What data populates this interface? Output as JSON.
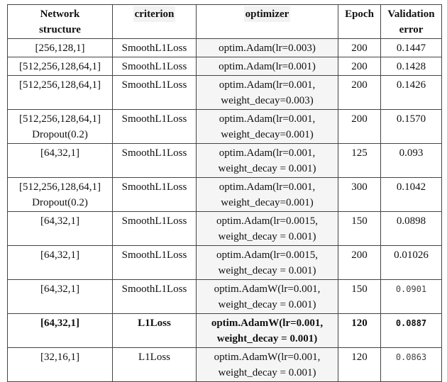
{
  "headers": [
    [
      "Network",
      "structure"
    ],
    [
      "criterion"
    ],
    [
      "optimizer"
    ],
    [
      "Epoch"
    ],
    [
      "Validation",
      "error"
    ]
  ],
  "rows": [
    {
      "network": [
        "[256,128,1]"
      ],
      "criterion": "SmoothL1Loss",
      "optimizer": [
        "optim.Adam(lr=0.003)"
      ],
      "epoch": "200",
      "error": "0.1447",
      "mono": false,
      "bold": false
    },
    {
      "network": [
        "[512,256,128,64,1]"
      ],
      "criterion": "SmoothL1Loss",
      "optimizer": [
        "optim.Adam(lr=0.001)"
      ],
      "epoch": "200",
      "error": "0.1428",
      "mono": false,
      "bold": false
    },
    {
      "network": [
        "[512,256,128,64,1]"
      ],
      "criterion": "SmoothL1Loss",
      "optimizer": [
        "optim.Adam(lr=0.001,",
        "weight_decay=0.003)"
      ],
      "epoch": "200",
      "error": "0.1426",
      "mono": false,
      "bold": false
    },
    {
      "network": [
        "[512,256,128,64,1]",
        "Dropout(0.2)"
      ],
      "criterion": "SmoothL1Loss",
      "optimizer": [
        "optim.Adam(lr=0.001,",
        "weight_decay=0.001)"
      ],
      "epoch": "200",
      "error": "0.1570",
      "mono": false,
      "bold": false
    },
    {
      "network": [
        "[64,32,1]"
      ],
      "criterion": "SmoothL1Loss",
      "optimizer": [
        "optim.Adam(lr=0.001,",
        "weight_decay = 0.001)"
      ],
      "epoch": "125",
      "error": "0.093",
      "mono": false,
      "bold": false
    },
    {
      "network": [
        "[512,256,128,64,1]",
        "Dropout(0.2)"
      ],
      "criterion": "SmoothL1Loss",
      "optimizer": [
        "optim.Adam(lr=0.001,",
        "weight_decay=0.001)"
      ],
      "epoch": "300",
      "error": "0.1042",
      "mono": false,
      "bold": false
    },
    {
      "network": [
        "[64,32,1]"
      ],
      "criterion": "SmoothL1Loss",
      "optimizer": [
        "optim.Adam(lr=0.0015,",
        "weight_decay = 0.001)"
      ],
      "epoch": "150",
      "error": "0.0898",
      "mono": false,
      "bold": false
    },
    {
      "network": [
        "[64,32,1]"
      ],
      "criterion": "SmoothL1Loss",
      "optimizer": [
        "optim.Adam(lr=0.0015,",
        "weight_decay = 0.001)"
      ],
      "epoch": "200",
      "error": "0.01026",
      "mono": false,
      "bold": false
    },
    {
      "network": [
        "[64,32,1]"
      ],
      "criterion": "SmoothL1Loss",
      "optimizer": [
        "optim.AdamW(lr=0.001,",
        "weight_decay = 0.001)"
      ],
      "epoch": "150",
      "error": "0.0901",
      "mono": true,
      "bold": false
    },
    {
      "network": [
        "[64,32,1]"
      ],
      "criterion": "L1Loss",
      "optimizer": [
        "optim.AdamW(lr=0.001,",
        "weight_decay = 0.001)"
      ],
      "epoch": "120",
      "error": "0.0887",
      "mono": true,
      "bold": true
    },
    {
      "network": [
        "[32,16,1]"
      ],
      "criterion": "L1Loss",
      "optimizer": [
        "optim.AdamW(lr=0.001,",
        "weight_decay = 0.001)"
      ],
      "epoch": "120",
      "error": "0.0863",
      "mono": true,
      "bold": false
    }
  ]
}
